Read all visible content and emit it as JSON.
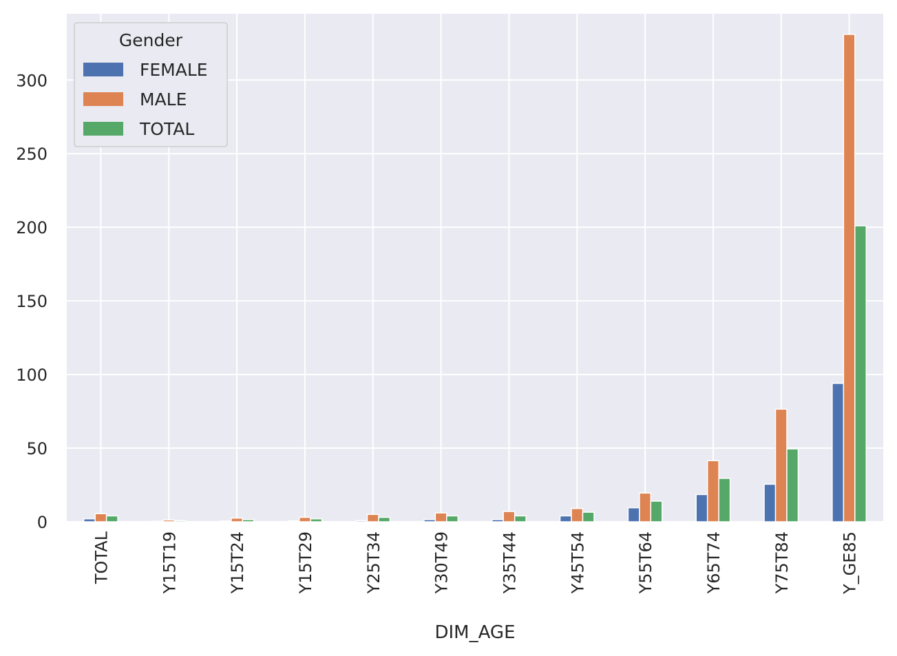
{
  "chart_data": {
    "type": "bar",
    "categories": [
      "TOTAL",
      "Y15T19",
      "Y15T24",
      "Y15T29",
      "Y25T34",
      "Y30T49",
      "Y35T44",
      "Y45T54",
      "Y55T64",
      "Y65T74",
      "Y75T84",
      "Y_GE85"
    ],
    "series": [
      {
        "name": "FEMALE",
        "color": "#4c72b0",
        "values": [
          2,
          0.3,
          0.5,
          0.6,
          0.8,
          1.5,
          1.5,
          4,
          9.5,
          18.5,
          25.5,
          94
        ]
      },
      {
        "name": "MALE",
        "color": "#dd8452",
        "values": [
          5.5,
          1.2,
          2.5,
          3,
          5,
          6,
          7,
          9,
          19.5,
          41.5,
          76.5,
          331
        ]
      },
      {
        "name": "TOTAL",
        "color": "#55a868",
        "values": [
          4,
          0.8,
          1.5,
          2,
          3,
          4,
          4,
          6.5,
          14,
          29.5,
          49.5,
          201
        ]
      }
    ],
    "xlabel": "DIM_AGE",
    "ylabel": "",
    "ylim": [
      0,
      345
    ],
    "yticks": [
      0,
      50,
      100,
      150,
      200,
      250,
      300
    ],
    "grid": true,
    "legend": {
      "title": "Gender",
      "placement": "top-left"
    },
    "background_color": "#eaeaf2",
    "grid_color": "#ffffff"
  }
}
